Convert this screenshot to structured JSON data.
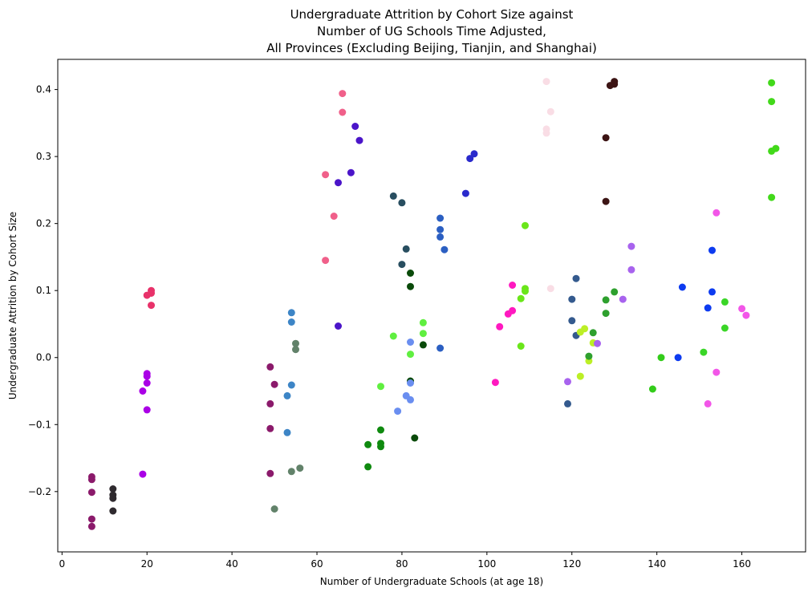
{
  "chart_data": {
    "type": "scatter",
    "title_lines": [
      "Undergraduate Attrition by Cohort Size against",
      "Number of UG Schools Time Adjusted,",
      "All Provinces (Excluding Beijing, Tianjin, and Shanghai)"
    ],
    "xlabel": "Number of Undergraduate Schools (at age 18)",
    "ylabel": "Undergraduate Attrition by Cohort Size",
    "xlim": [
      -1,
      175
    ],
    "ylim": [
      -0.29,
      0.445
    ],
    "xticks": [
      0,
      20,
      40,
      60,
      80,
      100,
      120,
      140,
      160
    ],
    "yticks": [
      -0.2,
      -0.1,
      0.0,
      0.1,
      0.2,
      0.3,
      0.4
    ],
    "xtick_labels": [
      "0",
      "20",
      "40",
      "60",
      "80",
      "100",
      "120",
      "140",
      "160"
    ],
    "ytick_labels": [
      "−0.2",
      "−0.1",
      "0.0",
      "0.1",
      "0.2",
      "0.3",
      "0.4"
    ],
    "grid": false,
    "series": [
      {
        "color": "#8b1a6b",
        "points": [
          [
            7,
            -0.178
          ],
          [
            7,
            -0.182
          ],
          [
            7,
            -0.201
          ],
          [
            7,
            -0.241
          ],
          [
            7,
            -0.252
          ]
        ]
      },
      {
        "color": "#2f2a2f",
        "points": [
          [
            12,
            -0.196
          ],
          [
            12,
            -0.205
          ],
          [
            12,
            -0.21
          ],
          [
            12,
            -0.229
          ]
        ]
      },
      {
        "color": "#aa00e6",
        "points": [
          [
            19,
            -0.174
          ],
          [
            19,
            -0.05
          ],
          [
            20,
            -0.024
          ],
          [
            20,
            -0.028
          ],
          [
            20,
            -0.038
          ],
          [
            20,
            -0.078
          ]
        ]
      },
      {
        "color": "#e8326a",
        "points": [
          [
            20,
            0.093
          ],
          [
            21,
            0.1
          ],
          [
            21,
            0.096
          ],
          [
            21,
            0.078
          ]
        ]
      },
      {
        "color": "#8b1a6b",
        "points": [
          [
            49,
            -0.014
          ],
          [
            50,
            -0.04
          ],
          [
            49,
            -0.069
          ],
          [
            49,
            -0.106
          ],
          [
            49,
            -0.173
          ]
        ]
      },
      {
        "color": "#3d85c6",
        "points": [
          [
            54,
            0.067
          ],
          [
            54,
            0.053
          ],
          [
            54,
            -0.041
          ],
          [
            53,
            -0.057
          ],
          [
            53,
            -0.112
          ]
        ]
      },
      {
        "color": "#62826a",
        "points": [
          [
            55,
            0.021
          ],
          [
            55,
            0.012
          ],
          [
            56,
            -0.165
          ],
          [
            54,
            -0.17
          ],
          [
            50,
            -0.226
          ]
        ]
      },
      {
        "color": "#f0608a",
        "points": [
          [
            66,
            0.394
          ],
          [
            66,
            0.366
          ],
          [
            62,
            0.273
          ],
          [
            64,
            0.211
          ],
          [
            62,
            0.145
          ]
        ]
      },
      {
        "color": "#4b15c9",
        "points": [
          [
            69,
            0.345
          ],
          [
            70,
            0.324
          ],
          [
            68,
            0.276
          ],
          [
            65,
            0.261
          ],
          [
            65,
            0.047
          ]
        ]
      },
      {
        "color": "#284e60",
        "points": [
          [
            78,
            0.241
          ],
          [
            80,
            0.231
          ],
          [
            81,
            0.162
          ],
          [
            80,
            0.139
          ]
        ]
      },
      {
        "color": "#2b5fc2",
        "points": [
          [
            89,
            0.208
          ],
          [
            89,
            0.191
          ],
          [
            89,
            0.18
          ],
          [
            90,
            0.161
          ],
          [
            89,
            0.014
          ]
        ]
      },
      {
        "color": "#2a2acc",
        "points": [
          [
            97,
            0.304
          ],
          [
            96,
            0.297
          ],
          [
            95,
            0.245
          ]
        ]
      },
      {
        "color": "#0a4a0a",
        "points": [
          [
            82,
            0.126
          ],
          [
            82,
            0.106
          ],
          [
            85,
            0.019
          ],
          [
            82,
            -0.035
          ],
          [
            83,
            -0.12
          ]
        ]
      },
      {
        "color": "#60ef40",
        "points": [
          [
            85,
            0.052
          ],
          [
            85,
            0.036
          ],
          [
            82,
            0.005
          ],
          [
            78,
            0.032
          ],
          [
            75,
            -0.043
          ]
        ]
      },
      {
        "color": "#6a8ef0",
        "points": [
          [
            82,
            0.023
          ],
          [
            82,
            -0.038
          ],
          [
            81,
            -0.057
          ],
          [
            82,
            -0.063
          ],
          [
            79,
            -0.08
          ]
        ]
      },
      {
        "color": "#0f8a0f",
        "points": [
          [
            75,
            -0.108
          ],
          [
            72,
            -0.13
          ],
          [
            75,
            -0.128
          ],
          [
            75,
            -0.133
          ],
          [
            72,
            -0.163
          ]
        ]
      },
      {
        "color": "#ff19c0",
        "points": [
          [
            106,
            0.108
          ],
          [
            106,
            0.07
          ],
          [
            105,
            0.065
          ],
          [
            103,
            0.046
          ],
          [
            102,
            -0.037
          ]
        ]
      },
      {
        "color": "#6ae61a",
        "points": [
          [
            109,
            0.197
          ],
          [
            109,
            0.103
          ],
          [
            109,
            0.099
          ],
          [
            108,
            0.088
          ],
          [
            108,
            0.017
          ]
        ]
      },
      {
        "color": "#f9dde5",
        "points": [
          [
            114,
            0.412
          ],
          [
            115,
            0.367
          ],
          [
            114,
            0.341
          ],
          [
            114,
            0.335
          ],
          [
            115,
            0.103
          ]
        ]
      },
      {
        "color": "#3c1414",
        "points": [
          [
            130,
            0.412
          ],
          [
            130,
            0.408
          ],
          [
            129,
            0.406
          ],
          [
            128,
            0.328
          ],
          [
            128,
            0.233
          ]
        ]
      },
      {
        "color": "#345a8e",
        "points": [
          [
            121,
            0.118
          ],
          [
            120,
            0.087
          ],
          [
            120,
            0.055
          ],
          [
            121,
            0.033
          ],
          [
            119,
            -0.069
          ]
        ]
      },
      {
        "color": "#bcef26",
        "points": [
          [
            123,
            0.043
          ],
          [
            122,
            0.038
          ],
          [
            125,
            0.022
          ],
          [
            124,
            -0.005
          ],
          [
            122,
            -0.028
          ]
        ]
      },
      {
        "color": "#2ea02e",
        "points": [
          [
            130,
            0.098
          ],
          [
            128,
            0.086
          ],
          [
            128,
            0.066
          ],
          [
            125,
            0.037
          ],
          [
            124,
            0.002
          ]
        ]
      },
      {
        "color": "#a863ee",
        "points": [
          [
            134,
            0.166
          ],
          [
            134,
            0.131
          ],
          [
            132,
            0.087
          ],
          [
            126,
            0.021
          ],
          [
            119,
            -0.036
          ]
        ]
      },
      {
        "color": "#33cc1a",
        "points": [
          [
            141,
            0.0
          ],
          [
            139,
            -0.047
          ]
        ]
      },
      {
        "color": "#0d3bf0",
        "points": [
          [
            153,
            0.16
          ],
          [
            146,
            0.105
          ],
          [
            153,
            0.098
          ],
          [
            152,
            0.074
          ],
          [
            145,
            0.0
          ]
        ]
      },
      {
        "color": "#3ad627",
        "points": [
          [
            156,
            0.083
          ],
          [
            156,
            0.044
          ],
          [
            151,
            0.008
          ]
        ]
      },
      {
        "color": "#f256e8",
        "points": [
          [
            154,
            0.216
          ],
          [
            160,
            0.073
          ],
          [
            161,
            0.063
          ],
          [
            154,
            -0.022
          ],
          [
            152,
            -0.069
          ]
        ]
      },
      {
        "color": "#42d91a",
        "points": [
          [
            167,
            0.41
          ],
          [
            167,
            0.382
          ],
          [
            168,
            0.312
          ],
          [
            167,
            0.308
          ],
          [
            167,
            0.239
          ]
        ]
      }
    ]
  }
}
